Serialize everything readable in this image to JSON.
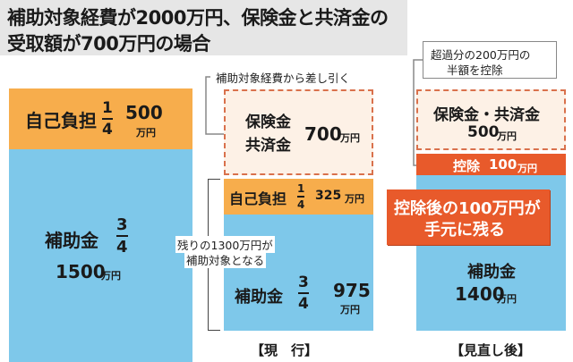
{
  "title": {
    "line1": "補助対象経費が2000万円、保険金と共済金の",
    "line2": "受取額が700万円の場合"
  },
  "left_column": {
    "self_label": "自己負担",
    "self_frac_num": "1",
    "self_frac_den": "4",
    "self_amount": "500",
    "self_unit": "万円",
    "subsidy_label": "補助金",
    "subsidy_frac_num": "3",
    "subsidy_frac_den": "4",
    "subsidy_amount": "1500",
    "subsidy_unit": "万円"
  },
  "middle_column": {
    "note": "補助対象経費から差し引く",
    "insurance_line1": "保険金",
    "insurance_line2": "共済金",
    "insurance_amount": "700",
    "insurance_unit": "万円",
    "self_label": "自己負担",
    "self_frac_num": "1",
    "self_frac_den": "4",
    "self_amount": "325",
    "self_unit": "万円",
    "remaining_note_line1": "残りの1300万円が",
    "remaining_note_line2": "補助対象となる",
    "subsidy_label": "補助金",
    "subsidy_frac_num": "3",
    "subsidy_frac_den": "4",
    "subsidy_amount": "975",
    "subsidy_unit": "万円",
    "footer": "【現　行】"
  },
  "right_column": {
    "note_line1": "超過分の200万円の",
    "note_line2": "半額を控除",
    "insurance_label": "保険金・共済金",
    "insurance_amount": "500",
    "insurance_unit": "万円",
    "deduction_label": "控除",
    "deduction_amount": "100",
    "deduction_unit": "万円",
    "callout_line1": "控除後の100万円が",
    "callout_line2": "手元に残る",
    "subsidy_label": "補助金",
    "subsidy_amount": "1400",
    "subsidy_unit": "万円",
    "footer": "【見直し後】"
  },
  "colors": {
    "subsidy": "#7ec8ea",
    "self_pay": "#f7ad4c",
    "insurance": "#fdf1e6",
    "deduction": "#e85a2b",
    "title_bg": "#e6e6e6"
  }
}
